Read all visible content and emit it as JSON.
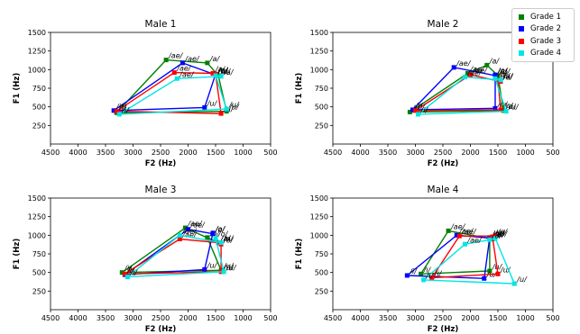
{
  "chart_data": [
    {
      "type": "line",
      "title": "Male 1",
      "xlabel": "F2 (Hz)",
      "ylabel": "F1 (Hz)",
      "xlim": [
        4500,
        500
      ],
      "ylim": [
        1500,
        0
      ],
      "xticks": [
        4500,
        4000,
        3500,
        3000,
        2500,
        2000,
        1500,
        1000,
        500
      ],
      "yticks": [
        250,
        500,
        750,
        1000,
        1250,
        1500
      ],
      "grid": false,
      "series": [
        {
          "name": "Grade 1",
          "points": [
            {
              "vowel": "/i/",
              "f2": 3300,
              "f1": 420
            },
            {
              "vowel": "/u/",
              "f2": 1300,
              "f1": 440
            },
            {
              "vowel": "/o/",
              "f2": 1450,
              "f1": 920
            },
            {
              "vowel": "/a/",
              "f2": 1650,
              "f1": 1090
            },
            {
              "vowel": "/ae/",
              "f2": 2400,
              "f1": 1130
            }
          ]
        },
        {
          "name": "Grade 2",
          "points": [
            {
              "vowel": "/i/",
              "f2": 3350,
              "f1": 450
            },
            {
              "vowel": "/u/",
              "f2": 1700,
              "f1": 490
            },
            {
              "vowel": "/o/",
              "f2": 1500,
              "f1": 940
            },
            {
              "vowel": "/a/",
              "f2": 1500,
              "f1": 930
            },
            {
              "vowel": "/ae/",
              "f2": 2100,
              "f1": 1090
            }
          ]
        },
        {
          "name": "Grade 3",
          "points": [
            {
              "vowel": "/i/",
              "f2": 3300,
              "f1": 440
            },
            {
              "vowel": "/u/",
              "f2": 1400,
              "f1": 410
            },
            {
              "vowel": "/o/",
              "f2": 1500,
              "f1": 940
            },
            {
              "vowel": "/a/",
              "f2": 1550,
              "f1": 950
            },
            {
              "vowel": "/ae/",
              "f2": 2250,
              "f1": 960
            }
          ]
        },
        {
          "name": "Grade 4",
          "points": [
            {
              "vowel": "/i/",
              "f2": 3250,
              "f1": 400
            },
            {
              "vowel": "/u/",
              "f2": 1300,
              "f1": 470
            },
            {
              "vowel": "/o/",
              "f2": 1500,
              "f1": 920
            },
            {
              "vowel": "/a/",
              "f2": 1400,
              "f1": 910
            },
            {
              "vowel": "/ae/",
              "f2": 2200,
              "f1": 880
            }
          ]
        }
      ]
    },
    {
      "type": "line",
      "title": "Male 2",
      "xlabel": "F2 (Hz)",
      "ylabel": "F1 (Hz)",
      "xlim": [
        4500,
        500
      ],
      "ylim": [
        1500,
        0
      ],
      "xticks": [
        4500,
        4000,
        3500,
        3000,
        2500,
        2000,
        1500,
        1000,
        500
      ],
      "yticks": [
        250,
        500,
        750,
        1000,
        1250,
        1500
      ],
      "grid": false,
      "series": [
        {
          "name": "Grade 1",
          "points": [
            {
              "vowel": "/i/",
              "f2": 3100,
              "f1": 430
            },
            {
              "vowel": "/u/",
              "f2": 1400,
              "f1": 450
            },
            {
              "vowel": "/o/",
              "f2": 1500,
              "f1": 920
            },
            {
              "vowel": "/a/",
              "f2": 1700,
              "f1": 1060
            },
            {
              "vowel": "/ae/",
              "f2": 2050,
              "f1": 950
            }
          ]
        },
        {
          "name": "Grade 2",
          "points": [
            {
              "vowel": "/i/",
              "f2": 3050,
              "f1": 460
            },
            {
              "vowel": "/u/",
              "f2": 1550,
              "f1": 480
            },
            {
              "vowel": "/o/",
              "f2": 1550,
              "f1": 930
            },
            {
              "vowel": "/a/",
              "f2": 1550,
              "f1": 920
            },
            {
              "vowel": "/ae/",
              "f2": 2300,
              "f1": 1030
            }
          ]
        },
        {
          "name": "Grade 3",
          "points": [
            {
              "vowel": "/i/",
              "f2": 3000,
              "f1": 450
            },
            {
              "vowel": "/u/",
              "f2": 1450,
              "f1": 460
            },
            {
              "vowel": "/o/",
              "f2": 1500,
              "f1": 860
            },
            {
              "vowel": "/a/",
              "f2": 1450,
              "f1": 840
            },
            {
              "vowel": "/ae/",
              "f2": 2000,
              "f1": 930
            }
          ]
        },
        {
          "name": "Grade 4",
          "points": [
            {
              "vowel": "/i/",
              "f2": 2950,
              "f1": 400
            },
            {
              "vowel": "/u/",
              "f2": 1350,
              "f1": 440
            },
            {
              "vowel": "/o/",
              "f2": 1550,
              "f1": 880
            },
            {
              "vowel": "/a/",
              "f2": 1450,
              "f1": 860
            },
            {
              "vowel": "/ae/",
              "f2": 2100,
              "f1": 900
            }
          ]
        }
      ]
    },
    {
      "type": "line",
      "title": "Male 3",
      "xlabel": "F2 (Hz)",
      "ylabel": "F1 (Hz)",
      "xlim": [
        4500,
        500
      ],
      "ylim": [
        1500,
        0
      ],
      "xticks": [
        4500,
        4000,
        3500,
        3000,
        2500,
        2000,
        1500,
        1000,
        500
      ],
      "yticks": [
        250,
        500,
        750,
        1000,
        1250,
        1500
      ],
      "grid": false,
      "series": [
        {
          "name": "Grade 1",
          "points": [
            {
              "vowel": "/i/",
              "f2": 3200,
              "f1": 500
            },
            {
              "vowel": "/u/",
              "f2": 1400,
              "f1": 530
            },
            {
              "vowel": "/o/",
              "f2": 1650,
              "f1": 970
            },
            {
              "vowel": "/a/",
              "f2": 1450,
              "f1": 900
            },
            {
              "vowel": "/ae/",
              "f2": 2050,
              "f1": 1100
            }
          ]
        },
        {
          "name": "Grade 2",
          "points": [
            {
              "vowel": "/i/",
              "f2": 3150,
              "f1": 470
            },
            {
              "vowel": "/u/",
              "f2": 1700,
              "f1": 540
            },
            {
              "vowel": "/o/",
              "f2": 1550,
              "f1": 1030
            },
            {
              "vowel": "/a/",
              "f2": 1550,
              "f1": 1020
            },
            {
              "vowel": "/ae/",
              "f2": 2000,
              "f1": 1080
            }
          ]
        },
        {
          "name": "Grade 3",
          "points": [
            {
              "vowel": "/i/",
              "f2": 3150,
              "f1": 480
            },
            {
              "vowel": "/u/",
              "f2": 1400,
              "f1": 510
            },
            {
              "vowel": "/o/",
              "f2": 1400,
              "f1": 880
            },
            {
              "vowel": "/a/",
              "f2": 1450,
              "f1": 900
            },
            {
              "vowel": "/ae/",
              "f2": 2150,
              "f1": 950
            }
          ]
        },
        {
          "name": "Grade 4",
          "points": [
            {
              "vowel": "/i/",
              "f2": 3100,
              "f1": 440
            },
            {
              "vowel": "/u/",
              "f2": 1350,
              "f1": 510
            },
            {
              "vowel": "/o/",
              "f2": 1500,
              "f1": 960
            },
            {
              "vowel": "/a/",
              "f2": 1400,
              "f1": 900
            },
            {
              "vowel": "/ae/",
              "f2": 2150,
              "f1": 1000
            }
          ]
        }
      ]
    },
    {
      "type": "line",
      "title": "Male 4",
      "xlabel": "F2 (Hz)",
      "ylabel": "F1 (Hz)",
      "xlim": [
        4500,
        500
      ],
      "ylim": [
        1500,
        0
      ],
      "xticks": [
        4500,
        4000,
        3500,
        3000,
        2500,
        2000,
        1500,
        1000,
        500
      ],
      "yticks": [
        250,
        500,
        750,
        1000,
        1250,
        1500
      ],
      "grid": false,
      "series": [
        {
          "name": "Grade 1",
          "points": [
            {
              "vowel": "/i/",
              "f2": 2900,
              "f1": 480
            },
            {
              "vowel": "/u/",
              "f2": 1650,
              "f1": 520
            },
            {
              "vowel": "/o/",
              "f2": 1650,
              "f1": 960
            },
            {
              "vowel": "/a/",
              "f2": 1600,
              "f1": 950
            },
            {
              "vowel": "/ae/",
              "f2": 2400,
              "f1": 1060
            }
          ]
        },
        {
          "name": "Grade 2",
          "points": [
            {
              "vowel": "/i/",
              "f2": 3150,
              "f1": 460
            },
            {
              "vowel": "/u/",
              "f2": 1750,
              "f1": 420
            },
            {
              "vowel": "/o/",
              "f2": 1650,
              "f1": 970
            },
            {
              "vowel": "/a/",
              "f2": 1600,
              "f1": 960
            },
            {
              "vowel": "/ae/",
              "f2": 2250,
              "f1": 1000
            }
          ]
        },
        {
          "name": "Grade 3",
          "points": [
            {
              "vowel": "/i/",
              "f2": 2700,
              "f1": 430
            },
            {
              "vowel": "/u/",
              "f2": 1500,
              "f1": 480
            },
            {
              "vowel": "/o/",
              "f2": 1600,
              "f1": 980
            },
            {
              "vowel": "/a/",
              "f2": 1550,
              "f1": 990
            },
            {
              "vowel": "/ae/",
              "f2": 2200,
              "f1": 990
            }
          ]
        },
        {
          "name": "Grade 4",
          "points": [
            {
              "vowel": "/i/",
              "f2": 2850,
              "f1": 400
            },
            {
              "vowel": "/u/",
              "f2": 1200,
              "f1": 350
            },
            {
              "vowel": "/o/",
              "f2": 1550,
              "f1": 960
            },
            {
              "vowel": "/a/",
              "f2": 1650,
              "f1": 940
            },
            {
              "vowel": "/ae/",
              "f2": 2100,
              "f1": 880
            }
          ]
        }
      ]
    }
  ],
  "legend": {
    "placement": "top-right",
    "entries": [
      {
        "label": "Grade 1",
        "color": "#008000"
      },
      {
        "label": "Grade 2",
        "color": "#0000ff"
      },
      {
        "label": "Grade 3",
        "color": "#ff0000"
      },
      {
        "label": "Grade 4",
        "color": "#00e5e5"
      }
    ]
  }
}
